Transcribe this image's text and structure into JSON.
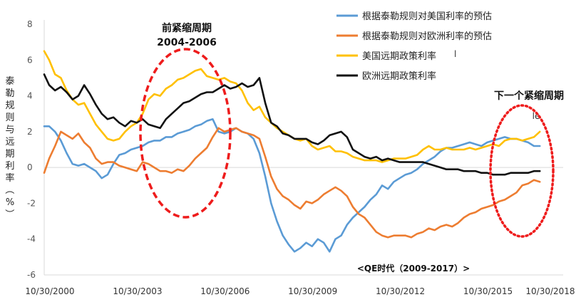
{
  "chart_data": {
    "type": "line",
    "title": "",
    "ylabel": "泰勒规则与远期利率（%）",
    "ylim": [
      -6,
      8
    ],
    "yticks": [
      "8",
      "6",
      "4",
      "2",
      "0",
      "-2",
      "-4",
      "-6"
    ],
    "ytick_values": [
      8,
      6,
      4,
      2,
      0,
      -2,
      -4,
      -6
    ],
    "xlim": [
      2000.83,
      2018.6
    ],
    "xticks": [
      "10/30/2000",
      "10/30/2003",
      "10/30/2006",
      "10/30/2009",
      "10/30/2012",
      "10/30/2015",
      "10/30/2018"
    ],
    "xtick_values": [
      2000.83,
      2003.83,
      2006.83,
      2009.83,
      2012.83,
      2015.83,
      2018.83
    ],
    "x": [
      2000.83,
      2001.0,
      2001.2,
      2001.4,
      2001.6,
      2001.8,
      2002.0,
      2002.2,
      2002.4,
      2002.6,
      2002.8,
      2003.0,
      2003.2,
      2003.4,
      2003.6,
      2003.8,
      2004.0,
      2004.2,
      2004.4,
      2004.6,
      2004.8,
      2005.0,
      2005.2,
      2005.4,
      2005.6,
      2005.8,
      2006.0,
      2006.2,
      2006.4,
      2006.6,
      2006.8,
      2007.0,
      2007.2,
      2007.4,
      2007.6,
      2007.8,
      2008.0,
      2008.2,
      2008.4,
      2008.6,
      2008.8,
      2009.0,
      2009.2,
      2009.4,
      2009.6,
      2009.8,
      2010.0,
      2010.2,
      2010.4,
      2010.6,
      2010.8,
      2011.0,
      2011.2,
      2011.4,
      2011.6,
      2011.8,
      2012.0,
      2012.2,
      2012.4,
      2012.6,
      2012.8,
      2013.0,
      2013.2,
      2013.4,
      2013.6,
      2013.8,
      2014.0,
      2014.2,
      2014.4,
      2014.6,
      2014.8,
      2015.0,
      2015.2,
      2015.4,
      2015.6,
      2015.8,
      2016.0,
      2016.2,
      2016.4,
      2016.6,
      2016.8,
      2017.0,
      2017.2,
      2017.4,
      2017.6,
      2017.8
    ],
    "series": [
      {
        "name": "根据泰勒规则对美国利率的预估",
        "color": "#5b9bd5",
        "values": [
          2.3,
          2.3,
          2.0,
          1.5,
          0.8,
          0.2,
          0.1,
          0.2,
          0.0,
          -0.2,
          -0.6,
          -0.4,
          0.2,
          0.7,
          0.8,
          1.0,
          1.1,
          1.2,
          1.4,
          1.5,
          1.5,
          1.7,
          1.7,
          1.9,
          2.0,
          2.1,
          2.3,
          2.4,
          2.6,
          2.7,
          2.0,
          1.9,
          2.0,
          2.2,
          2.0,
          1.9,
          1.6,
          0.8,
          -0.5,
          -2.0,
          -3.0,
          -3.8,
          -4.3,
          -4.7,
          -4.5,
          -4.2,
          -4.4,
          -4.0,
          -4.2,
          -4.7,
          -4.0,
          -3.8,
          -3.2,
          -2.8,
          -2.5,
          -2.2,
          -1.8,
          -1.5,
          -1.0,
          -1.2,
          -0.8,
          -0.6,
          -0.4,
          -0.3,
          -0.1,
          0.2,
          0.4,
          0.6,
          0.9,
          1.1,
          1.1,
          1.2,
          1.3,
          1.4,
          1.3,
          1.2,
          1.4,
          1.5,
          1.6,
          1.7,
          1.6,
          1.6,
          1.5,
          1.4,
          1.2,
          1.2
        ]
      },
      {
        "name": "根据泰勒规则对欧洲利率的预估",
        "color": "#ed7d31",
        "values": [
          -0.3,
          0.5,
          1.2,
          2.0,
          1.8,
          1.6,
          1.9,
          1.4,
          1.1,
          0.5,
          0.2,
          0.3,
          0.3,
          0.1,
          0.0,
          -0.1,
          -0.2,
          0.3,
          0.2,
          0.0,
          -0.2,
          -0.2,
          -0.3,
          -0.1,
          -0.2,
          0.1,
          0.5,
          0.8,
          1.1,
          1.7,
          2.2,
          2.0,
          2.1,
          2.2,
          2.0,
          1.9,
          1.8,
          1.6,
          0.6,
          -0.5,
          -1.2,
          -1.6,
          -1.8,
          -2.1,
          -2.3,
          -1.9,
          -2.0,
          -1.8,
          -1.5,
          -1.3,
          -1.1,
          -1.3,
          -1.6,
          -2.2,
          -2.6,
          -2.8,
          -3.2,
          -3.6,
          -3.8,
          -3.9,
          -3.8,
          -3.8,
          -3.8,
          -3.9,
          -3.7,
          -3.6,
          -3.4,
          -3.5,
          -3.3,
          -3.2,
          -3.3,
          -3.1,
          -2.8,
          -2.6,
          -2.5,
          -2.3,
          -2.2,
          -2.1,
          -1.9,
          -1.8,
          -1.6,
          -1.4,
          -1.0,
          -0.9,
          -0.7,
          -0.8
        ]
      },
      {
        "name": "美国远期政策利率",
        "color": "#ffc000",
        "values": [
          6.5,
          6.0,
          5.2,
          5.0,
          4.3,
          3.8,
          3.5,
          3.6,
          3.0,
          2.4,
          2.0,
          1.6,
          1.5,
          1.6,
          2.0,
          2.3,
          2.5,
          3.0,
          3.8,
          4.1,
          4.0,
          4.4,
          4.6,
          4.9,
          5.0,
          5.2,
          5.4,
          5.5,
          5.1,
          5.0,
          4.9,
          5.0,
          4.8,
          4.7,
          4.3,
          3.6,
          3.2,
          3.4,
          2.8,
          2.5,
          2.2,
          2.0,
          1.8,
          1.6,
          1.5,
          1.6,
          1.2,
          1.0,
          1.1,
          1.2,
          0.9,
          0.9,
          0.8,
          0.6,
          0.5,
          0.4,
          0.4,
          0.4,
          0.3,
          0.4,
          0.5,
          0.5,
          0.5,
          0.6,
          0.7,
          1.0,
          1.2,
          1.0,
          1.0,
          1.1,
          1.0,
          1.0,
          1.0,
          1.1,
          1.0,
          1.1,
          1.2,
          1.3,
          1.2,
          1.5,
          1.6,
          1.6,
          1.5,
          1.6,
          1.7,
          2.0
        ]
      },
      {
        "name": "欧洲远期政策利率",
        "color": "#111111",
        "values": [
          5.2,
          4.6,
          4.3,
          4.5,
          4.2,
          3.8,
          4.0,
          4.6,
          4.1,
          3.5,
          3.0,
          2.7,
          2.8,
          2.5,
          2.3,
          2.6,
          2.5,
          2.7,
          2.4,
          2.3,
          2.2,
          2.7,
          3.0,
          3.3,
          3.6,
          3.7,
          3.9,
          4.1,
          4.2,
          4.2,
          4.4,
          4.6,
          4.4,
          4.5,
          4.7,
          4.5,
          4.6,
          5.0,
          3.6,
          2.5,
          2.3,
          1.9,
          1.8,
          1.6,
          1.6,
          1.6,
          1.4,
          1.3,
          1.5,
          1.8,
          1.9,
          2.0,
          1.7,
          1.0,
          0.8,
          0.6,
          0.5,
          0.6,
          0.4,
          0.5,
          0.4,
          0.3,
          0.3,
          0.3,
          0.3,
          0.3,
          0.2,
          0.1,
          0.0,
          -0.1,
          -0.1,
          -0.1,
          -0.2,
          -0.2,
          -0.2,
          -0.3,
          -0.3,
          -0.4,
          -0.4,
          -0.4,
          -0.3,
          -0.3,
          -0.3,
          -0.3,
          -0.2,
          -0.2
        ]
      }
    ],
    "legend_position": "top-right",
    "annotations": {
      "prior_cycle_title": "前紧缩周期",
      "prior_cycle_years": "2004-2006",
      "next_cycle": "下一个紧缩周期",
      "next_cycle_fragment": "le",
      "qe_era": "<QE时代（2009-2017）>"
    },
    "legend_fragment": "l"
  }
}
